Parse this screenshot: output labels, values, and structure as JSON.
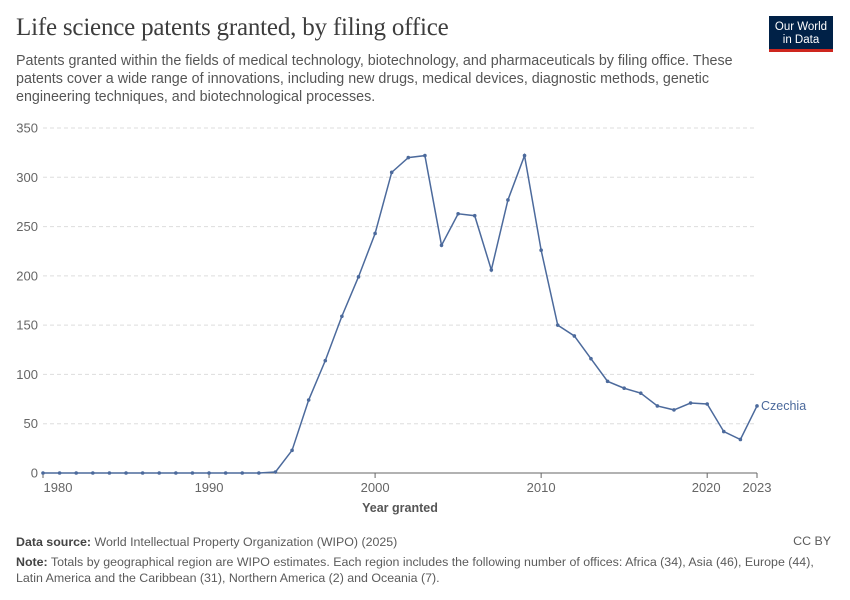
{
  "header": {
    "title": "Life science patents granted, by filing office",
    "subtitle": "Patents granted within the fields of medical technology, biotechnology, and pharmaceuticals by filing office. These patents cover a wide range of innovations, including new drugs, medical devices, diagnostic methods, genetic engineering techniques, and biotechnological processes."
  },
  "logo": {
    "line1": "Our World",
    "line2": "in Data"
  },
  "footer": {
    "source_label": "Data source:",
    "source_text": "World Intellectual Property Organization (WIPO) (2025)",
    "license": "CC BY",
    "note_label": "Note:",
    "note_text": "Totals by geographical region are WIPO estimates. Each region includes the following number of offices: Africa (34), Asia (46), Europe (44), Latin America and the Caribbean (31), Northern America (2) and Oceania (7)."
  },
  "colors": {
    "series": "#4c6a9c",
    "grid": "#dddddd",
    "axis": "#666666"
  },
  "chart_data": {
    "type": "line",
    "title": "Life science patents granted, by filing office",
    "xlabel": "Year granted",
    "ylabel": "",
    "xlim": [
      1980,
      2023
    ],
    "ylim": [
      0,
      350
    ],
    "x_ticks": [
      1980,
      1990,
      2000,
      2010,
      2020,
      2023
    ],
    "y_ticks": [
      0,
      50,
      100,
      150,
      200,
      250,
      300,
      350
    ],
    "grid": "horizontal-dashed",
    "series": [
      {
        "name": "Czechia",
        "x": [
          1980,
          1981,
          1982,
          1983,
          1984,
          1985,
          1986,
          1987,
          1988,
          1989,
          1990,
          1991,
          1992,
          1993,
          1994,
          1995,
          1996,
          1997,
          1998,
          1999,
          2000,
          2001,
          2002,
          2003,
          2004,
          2005,
          2006,
          2007,
          2008,
          2009,
          2010,
          2011,
          2012,
          2013,
          2014,
          2015,
          2016,
          2017,
          2018,
          2019,
          2020,
          2021,
          2022,
          2023
        ],
        "values": [
          0,
          0,
          0,
          0,
          0,
          0,
          0,
          0,
          0,
          0,
          0,
          0,
          0,
          0,
          1,
          23,
          74,
          114,
          159,
          199,
          243,
          305,
          320,
          322,
          231,
          263,
          261,
          206,
          277,
          322,
          226,
          150,
          139,
          116,
          93,
          86,
          81,
          68,
          64,
          71,
          70,
          42,
          34,
          68
        ]
      }
    ]
  }
}
